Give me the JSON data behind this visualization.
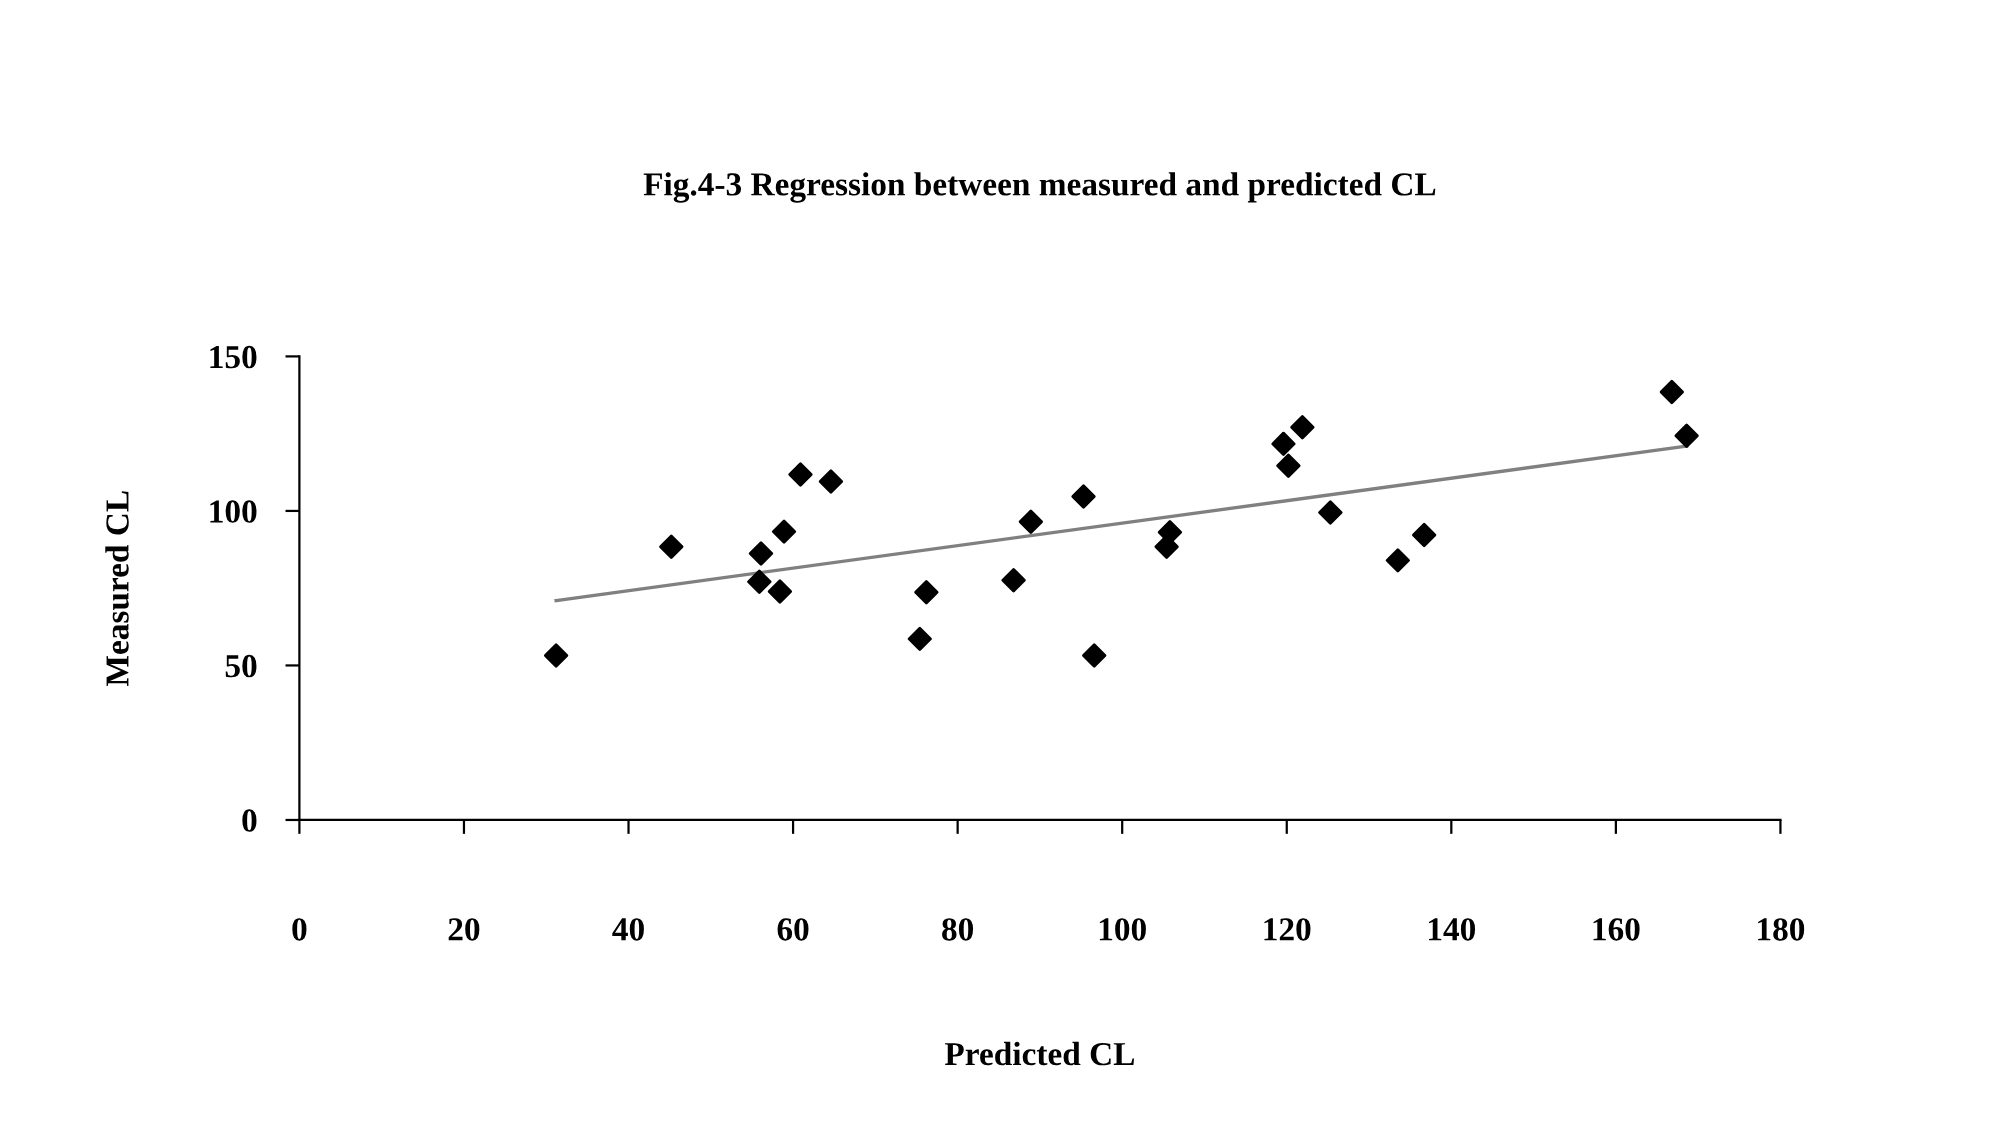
{
  "chart_data": {
    "type": "scatter",
    "title": "Fig.4-3 Regression between measured and predicted CL",
    "xlabel": "Predicted CL",
    "ylabel": "Measured CL",
    "xlim": [
      0,
      180
    ],
    "xticks": [
      0,
      20,
      40,
      60,
      80,
      100,
      120,
      140,
      160,
      180
    ],
    "ylim": [
      0,
      150
    ],
    "yticks": [
      0,
      50,
      100,
      150
    ],
    "grid": false,
    "marker": "diamond",
    "series": [
      {
        "color": "#000000",
        "x": [
          31.2,
          45.2,
          56.1,
          55.9,
          58.4,
          58.9,
          60.9,
          64.6,
          76.2,
          75.4,
          86.8,
          88.9,
          95.3,
          96.6,
          105.8,
          105.4,
          119.6,
          121.9,
          120.2,
          125.3,
          133.5,
          136.7,
          166.8,
          168.6
        ],
        "values": [
          53.2,
          88.4,
          86.2,
          77.1,
          73.9,
          93.3,
          111.8,
          109.5,
          73.7,
          58.6,
          77.6,
          96.5,
          104.7,
          53.2,
          93.1,
          88.4,
          121.7,
          127.1,
          114.6,
          99.5,
          84.0,
          92.2,
          138.5,
          124.3
        ]
      },
      {
        "type": "line",
        "color": "#808080",
        "marker": "none",
        "line_style": "solid",
        "x": [
          31.2,
          168.6
        ],
        "values": [
          71,
          121
        ]
      }
    ]
  }
}
